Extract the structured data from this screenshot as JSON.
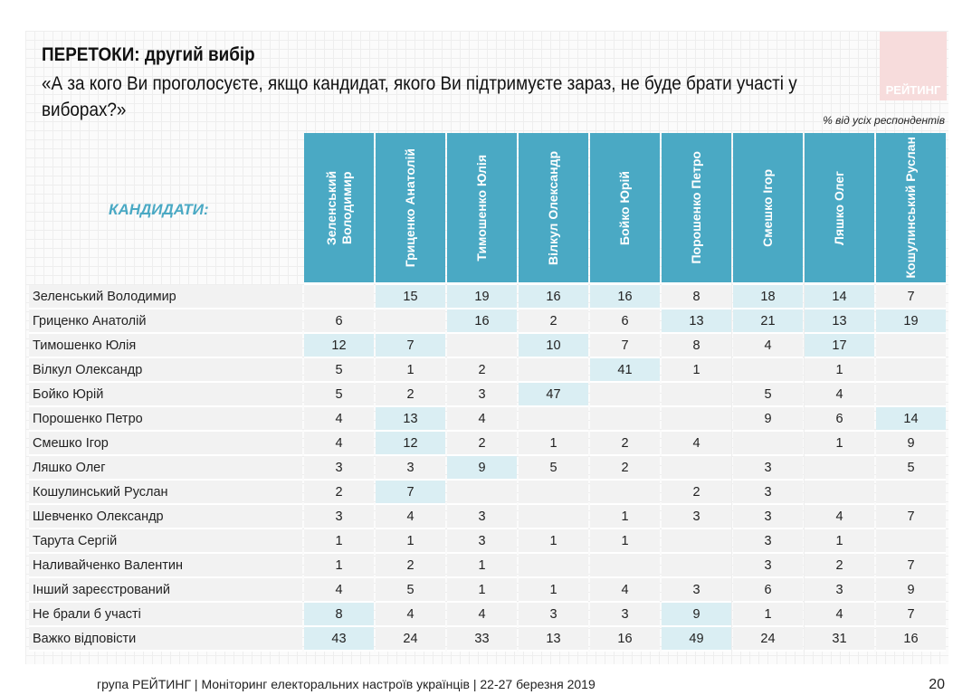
{
  "title": "ПЕРЕТОКИ: другий вибір",
  "question": "«А за кого Ви проголосуєте, якщо кандидат, якого Ви підтримуєте зараз, не буде брати участі у виборах?»",
  "logo_text": "РЕЙТИНГ",
  "note": "% від усіх респондентів",
  "row_header": "КАНДИДАТИ:",
  "columns": [
    "Зеленський Володимир",
    "Гриценко Анатолій",
    "Тимошенко Юлія",
    "Вілкул Олександр",
    "Бойко Юрій",
    "Порошенко Петро",
    "Смешко Ігор",
    "Ляшко Олег",
    "Кошулинський Руслан"
  ],
  "rows": [
    {
      "label": "Зеленський Володимир",
      "values": [
        "",
        "15",
        "19",
        "16",
        "16",
        "8",
        "18",
        "14",
        "7"
      ],
      "hl": [
        1,
        2,
        3,
        4,
        6,
        7
      ]
    },
    {
      "label": "Гриценко Анатолій",
      "values": [
        "6",
        "",
        "16",
        "2",
        "6",
        "13",
        "21",
        "13",
        "19"
      ],
      "hl": [
        2,
        5,
        6,
        7,
        8
      ]
    },
    {
      "label": "Тимошенко Юлія",
      "values": [
        "12",
        "7",
        "",
        "10",
        "7",
        "8",
        "4",
        "17",
        ""
      ],
      "hl": [
        0,
        1,
        3,
        7
      ]
    },
    {
      "label": "Вілкул Олександр",
      "values": [
        "5",
        "1",
        "2",
        "",
        "41",
        "1",
        "",
        "1",
        ""
      ],
      "hl": [
        4
      ]
    },
    {
      "label": "Бойко Юрій",
      "values": [
        "5",
        "2",
        "3",
        "47",
        "",
        "",
        "5",
        "4",
        ""
      ],
      "hl": [
        3
      ]
    },
    {
      "label": "Порошенко Петро",
      "values": [
        "4",
        "13",
        "4",
        "",
        "",
        "",
        "9",
        "6",
        "14"
      ],
      "hl": [
        1,
        8
      ]
    },
    {
      "label": "Смешко Ігор",
      "values": [
        "4",
        "12",
        "2",
        "1",
        "2",
        "4",
        "",
        "1",
        "9"
      ],
      "hl": [
        1
      ]
    },
    {
      "label": "Ляшко Олег",
      "values": [
        "3",
        "3",
        "9",
        "5",
        "2",
        "",
        "3",
        "",
        "5"
      ],
      "hl": [
        2
      ]
    },
    {
      "label": "Кошулинський Руслан",
      "values": [
        "2",
        "7",
        "",
        "",
        "",
        "2",
        "3",
        "",
        ""
      ],
      "hl": [
        1
      ]
    },
    {
      "label": "Шевченко Олександр",
      "values": [
        "3",
        "4",
        "3",
        "",
        "1",
        "3",
        "3",
        "4",
        "7"
      ],
      "hl": []
    },
    {
      "label": "Тарута Сергій",
      "values": [
        "1",
        "1",
        "3",
        "1",
        "1",
        "",
        "3",
        "1",
        ""
      ],
      "hl": []
    },
    {
      "label": "Наливайченко Валентин",
      "values": [
        "1",
        "2",
        "1",
        "",
        "",
        "",
        "3",
        "2",
        "7"
      ],
      "hl": []
    },
    {
      "label": "Інший зареєстрований",
      "values": [
        "4",
        "5",
        "1",
        "1",
        "4",
        "3",
        "6",
        "3",
        "9"
      ],
      "hl": []
    },
    {
      "label": "Не брали б участі",
      "values": [
        "8",
        "4",
        "4",
        "3",
        "3",
        "9",
        "1",
        "4",
        "7"
      ],
      "hl": [
        0,
        5
      ]
    },
    {
      "label": "Важко відповісти",
      "values": [
        "43",
        "24",
        "33",
        "13",
        "16",
        "49",
        "24",
        "31",
        "16"
      ],
      "hl": [
        0,
        5
      ]
    }
  ],
  "footer": "група РЕЙТИНГ | Моніторинг електоральних настроїв українців  |  22-27 березня 2019",
  "page_number": "20"
}
